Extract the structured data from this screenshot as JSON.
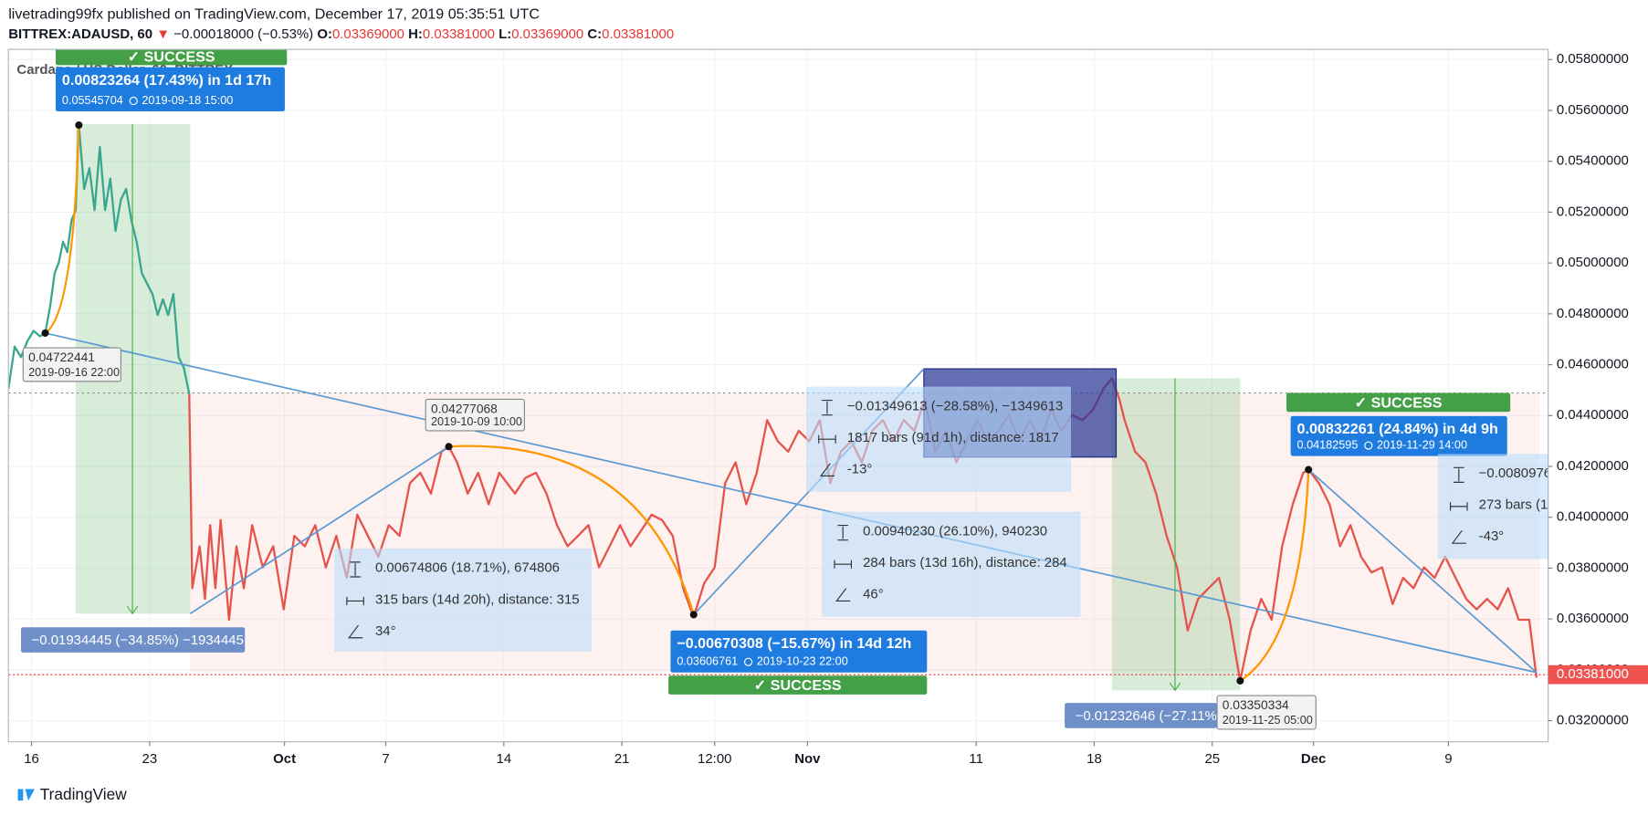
{
  "header": {
    "title": "livetrading99fx published on TradingView.com, December 17, 2019 05:35:51 UTC",
    "symbol": "BITTREX:ADAUSD, 60",
    "change": "−0.00018000 (−0.53%)",
    "ohlc": [
      {
        "key": "O:",
        "value": "0.03369000"
      },
      {
        "key": "H:",
        "value": "0.03381000"
      },
      {
        "key": "L:",
        "value": "0.03369000"
      },
      {
        "key": "C:",
        "value": "0.03381000"
      }
    ]
  },
  "chart_data": {
    "type": "line",
    "legend_title": "Cardano / US Dollar, 60, BITTREX",
    "x": [
      -1.37,
      -1.0,
      -0.62,
      -0.25,
      0.12,
      0.5,
      0.81,
      1.12,
      1.37,
      1.62,
      1.87,
      2.12,
      2.37,
      2.62,
      2.8,
      3.12,
      3.43,
      3.74,
      4.05,
      4.36,
      4.67,
      4.98,
      5.3,
      5.61,
      5.92,
      6.23,
      6.54,
      6.85,
      7.17,
      7.48,
      7.79,
      8.1,
      8.41,
      8.72,
      9.03,
      9.35,
      9.53,
      9.97,
      10.28,
      10.59,
      10.9,
      11.21,
      11.71,
      12.15,
      12.59,
      13.08,
      13.71,
      14.33,
      14.95,
      15.58,
      16.2,
      16.82,
      17.45,
      18.07,
      18.69,
      19.31,
      19.94,
      20.56,
      21.18,
      21.81,
      22.43,
      23.05,
      23.68,
      24.3,
      24.74,
      25.23,
      25.86,
      26.48,
      27.1,
      27.73,
      28.66,
      29.28,
      29.91,
      30.53,
      31.15,
      31.78,
      32.4,
      33.02,
      33.64,
      34.27,
      34.89,
      35.51,
      36.14,
      36.76,
      37.38,
      38.01,
      38.63,
      39.25,
      39.88,
      40.5,
      41.12,
      41.74,
      42.37,
      42.99,
      43.61,
      44.24,
      44.86,
      45.48,
      46.11,
      46.73,
      47.35,
      47.98,
      48.6,
      49.22,
      49.84,
      50.47,
      51.09,
      51.71,
      52.34,
      52.96,
      53.58,
      54.21,
      54.83,
      55.45,
      56.07,
      56.7,
      57.32,
      57.94,
      58.57,
      59.19,
      59.81,
      60.44,
      61.06,
      61.68,
      62.31,
      62.93,
      63.55,
      64.05,
      64.49,
      64.8,
      65.42,
      66.04,
      66.67,
      67.29,
      67.91,
      68.54,
      69.16,
      69.78,
      70.4,
      71.03,
      71.65,
      72.27,
      72.9,
      73.52,
      74.14,
      74.77,
      75.39,
      75.7,
      76.32,
      76.95,
      77.57,
      78.19,
      78.82,
      79.44,
      80.06,
      80.69,
      81.31,
      81.93,
      82.55,
      83.18,
      83.8,
      84.42,
      85.05,
      85.67,
      86.29,
      86.92,
      87.54,
      88.16,
      88.79,
      89.22
    ],
    "series": [
      {
        "color": "#3aa68f",
        "values": [
          0.04506,
          0.04671,
          0.0463,
          0.04692,
          0.04733,
          0.04712,
          0.04722,
          0.04836,
          0.0496,
          0.05002,
          0.05084,
          0.05043,
          0.05167,
          0.05208,
          0.05546,
          0.05291,
          0.05373,
          0.05208,
          0.05456,
          0.05208,
          0.05332,
          0.05126,
          0.0525,
          0.05291,
          0.05167,
          0.05084,
          0.0496,
          0.04919,
          0.04878,
          0.04795,
          0.04857,
          0.04795,
          0.04878,
          0.0463,
          0.04588,
          0.04485,
          null,
          null,
          null,
          null,
          null,
          null,
          null,
          null,
          null,
          null,
          null,
          null,
          null,
          null,
          null,
          null,
          null,
          null,
          null,
          null,
          null,
          null,
          null,
          null,
          null,
          null,
          null,
          null,
          null,
          null,
          null,
          null,
          null,
          null,
          null,
          null,
          null,
          null,
          null,
          null,
          null,
          null,
          null,
          null,
          null,
          null,
          null,
          null,
          null,
          null,
          null,
          null,
          null,
          null,
          null,
          null,
          null,
          null,
          null,
          null,
          null,
          null,
          null,
          null,
          null,
          null,
          null,
          null,
          null,
          null,
          null,
          null,
          null,
          null,
          null,
          null,
          null,
          null,
          null,
          null,
          null,
          null,
          null,
          null,
          null,
          null,
          null,
          null,
          null,
          null,
          null,
          null,
          null,
          null,
          null,
          null,
          null,
          null,
          null,
          null,
          null,
          null,
          null,
          null,
          null,
          null,
          null,
          null,
          null,
          null,
          null,
          null,
          null,
          null,
          null,
          null,
          null,
          null,
          null,
          null,
          null,
          null,
          null,
          null,
          null,
          null,
          null,
          null,
          null,
          null,
          null,
          null,
          null,
          null
        ]
      },
      {
        "color": "#e5534b",
        "values": [
          null,
          null,
          null,
          null,
          null,
          null,
          null,
          null,
          null,
          null,
          null,
          null,
          null,
          null,
          null,
          null,
          null,
          null,
          null,
          null,
          null,
          null,
          null,
          null,
          null,
          null,
          null,
          null,
          null,
          null,
          null,
          null,
          null,
          null,
          null,
          0.04485,
          0.03721,
          0.03886,
          0.03679,
          0.03969,
          0.03721,
          0.03989,
          0.03597,
          0.03886,
          0.03721,
          0.03969,
          0.03803,
          0.03886,
          0.03638,
          0.03927,
          0.03886,
          0.03969,
          0.03803,
          0.03927,
          0.03762,
          0.0401,
          0.03927,
          0.03845,
          0.03969,
          0.03927,
          0.04134,
          0.04175,
          0.04093,
          0.04258,
          0.04278,
          0.04216,
          0.04093,
          0.04175,
          0.04051,
          0.04175,
          0.04093,
          0.04155,
          0.04175,
          0.04093,
          0.03969,
          0.03886,
          0.03927,
          0.03969,
          0.03803,
          0.03886,
          0.03969,
          0.03886,
          0.03948,
          0.0401,
          0.03989,
          0.03927,
          0.03721,
          0.03607,
          0.03741,
          0.03803,
          0.04134,
          0.04216,
          0.04051,
          0.04175,
          0.04382,
          0.04299,
          0.04258,
          0.0434,
          0.04299,
          0.04382,
          0.04134,
          0.04258,
          0.04299,
          0.04216,
          0.0434,
          0.04382,
          0.04299,
          0.04382,
          0.0434,
          0.04464,
          0.04258,
          0.0434,
          0.04216,
          0.04299,
          0.04382,
          0.04299,
          0.0434,
          0.04402,
          0.04299,
          0.04382,
          0.04299,
          0.04423,
          0.0434,
          0.04402,
          0.04382,
          0.04423,
          0.04506,
          0.04547,
          0.04464,
          0.04382,
          0.04258,
          0.04216,
          0.04093,
          0.03927,
          0.03803,
          0.03555,
          0.03679,
          0.03721,
          0.03762,
          0.03597,
          0.03357,
          0.03555,
          0.03679,
          0.03597,
          0.03886,
          0.04051,
          0.04175,
          0.04188,
          0.04134,
          0.04051,
          0.03886,
          0.03969,
          0.03845,
          0.03783,
          0.03803,
          0.03659,
          0.03762,
          0.03721,
          0.03803,
          0.03762,
          0.03845,
          0.03762,
          0.03679,
          0.03638,
          0.03679,
          0.03638,
          0.03721,
          0.03597,
          0.03597,
          0.03369
        ]
      }
    ],
    "xlim": [
      -1.37,
      89.91
    ],
    "xticks": [
      {
        "value": 0,
        "label": "16"
      },
      {
        "value": 7,
        "label": "23"
      },
      {
        "value": 15,
        "label": "Oct"
      },
      {
        "value": 21,
        "label": "7"
      },
      {
        "value": 28,
        "label": "14"
      },
      {
        "value": 35,
        "label": "21"
      },
      {
        "value": 40.5,
        "label": "12:00"
      },
      {
        "value": 46,
        "label": "Nov"
      },
      {
        "value": 56,
        "label": "11"
      },
      {
        "value": 63,
        "label": "18"
      },
      {
        "value": 70,
        "label": "25"
      },
      {
        "value": 76,
        "label": "Dec"
      },
      {
        "value": 84,
        "label": "9"
      }
    ],
    "ylim": [
      0.03117,
      0.0584
    ],
    "yticks": [
      {
        "value": 0.032,
        "label": "0.03200000"
      },
      {
        "value": 0.034,
        "label": "0.03400000"
      },
      {
        "value": 0.036,
        "label": "0.03600000"
      },
      {
        "value": 0.038,
        "label": "0.03800000"
      },
      {
        "value": 0.04,
        "label": "0.04000000"
      },
      {
        "value": 0.042,
        "label": "0.04200000"
      },
      {
        "value": 0.044,
        "label": "0.04400000"
      },
      {
        "value": 0.046,
        "label": "0.04600000"
      },
      {
        "value": 0.048,
        "label": "0.04800000"
      },
      {
        "value": 0.05,
        "label": "0.05000000"
      },
      {
        "value": 0.052,
        "label": "0.05200000"
      },
      {
        "value": 0.054,
        "label": "0.05400000"
      },
      {
        "value": 0.056,
        "label": "0.05600000"
      },
      {
        "value": 0.058,
        "label": "0.05800000"
      }
    ],
    "grid": true,
    "last_price": {
      "value": 0.03381,
      "label": "0.03381000"
    },
    "annotations": [
      {
        "kind": "success",
        "text": "✓ SUCCESS"
      },
      {
        "kind": "result",
        "headline": "0.00823264 (17.43%) in 1d 17h",
        "price": "0.05545704",
        "time": "2019-09-18  15:00"
      },
      {
        "kind": "point",
        "price": "0.04722441",
        "time": "2019-09-16 22:00"
      },
      {
        "kind": "tag",
        "text": "−0.01934445 (−34.85%) −1934445"
      },
      {
        "kind": "point",
        "price": "0.04277068",
        "time": "2019-10-09 10:00"
      },
      {
        "kind": "measure",
        "lines": [
          "0.00674806 (18.71%), 674806",
          "315 bars (14d 20h), distance: 315",
          "34°"
        ]
      },
      {
        "kind": "result",
        "headline": "−0.00670308 (−15.67%) in 14d 12h",
        "price": "0.03606761",
        "time": "2019-10-23  22:00"
      },
      {
        "kind": "success",
        "text": "✓ SUCCESS"
      },
      {
        "kind": "measure",
        "lines": [
          "−0.01349613 (−28.58%), −1349613",
          "1817 bars (91d 1h), distance: 1817",
          "-13°"
        ]
      },
      {
        "kind": "measure",
        "lines": [
          "0.00940230 (26.10%), 940230",
          "284 bars (13d 16h), distance: 284",
          "46°"
        ]
      },
      {
        "kind": "tag",
        "text": "−0.01232646 (−27.11%)"
      },
      {
        "kind": "point",
        "price": "0.03350334",
        "time": "2019-11-25 05:00"
      },
      {
        "kind": "success",
        "text": "✓ SUCCESS"
      },
      {
        "kind": "result",
        "headline": "0.00832261 (24.84%) in 4d 9h",
        "price": "0.04182595",
        "time": "2019-11-29  14:00"
      },
      {
        "kind": "measure",
        "lines": [
          "−0.0080976",
          "273 bars (1",
          "-43°"
        ]
      }
    ]
  },
  "footer": {
    "brand": "TradingView"
  }
}
